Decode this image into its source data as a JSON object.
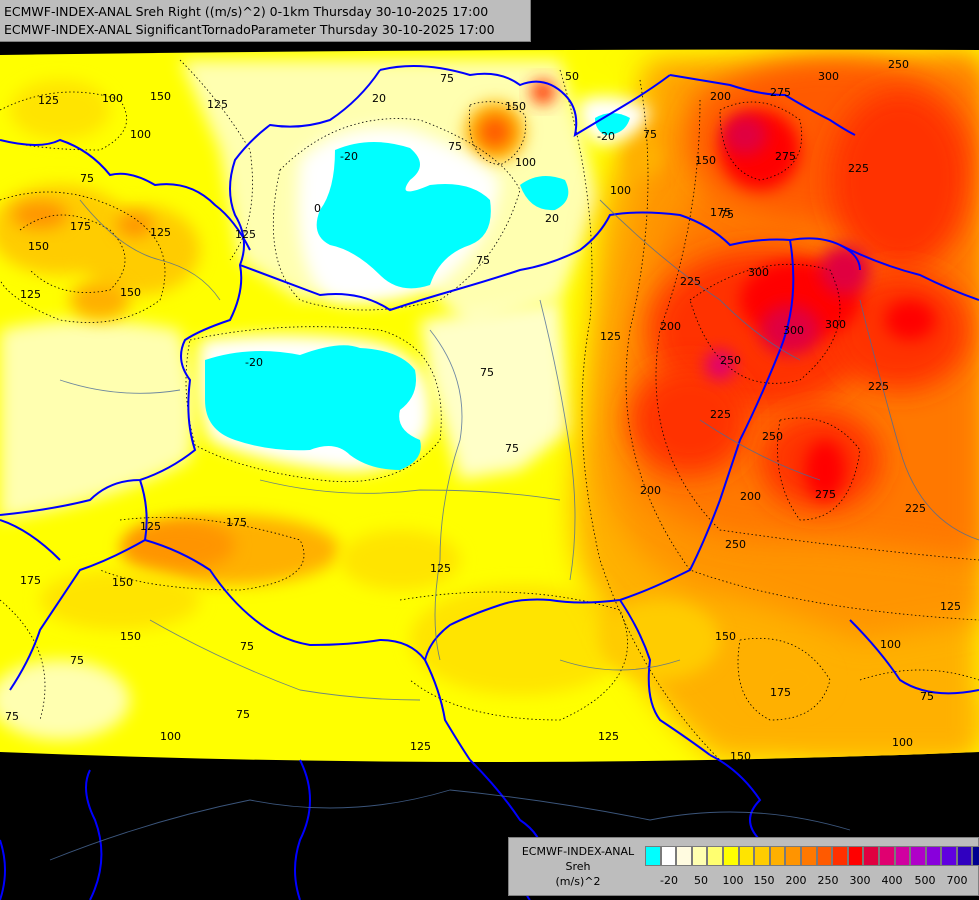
{
  "header": {
    "line1": "ECMWF-INDEX-ANAL Sreh Right ((m/s)^2) 0-1km Thursday 30-10-2025 17:00",
    "line2": "ECMWF-INDEX-ANAL SignificantTornadoParameter Thursday 30-10-2025 17:00"
  },
  "legend": {
    "model": "ECMWF-INDEX-ANAL",
    "field": "Sreh",
    "unit": "(m/s)^2",
    "colors": [
      "#00ffff",
      "#ffffff",
      "#fffbe0",
      "#ffffb0",
      "#ffff70",
      "#ffff00",
      "#ffe400",
      "#ffcc00",
      "#ffb000",
      "#ff9400",
      "#ff7800",
      "#ff5a00",
      "#ff3000",
      "#ff0000",
      "#e00040",
      "#e00070",
      "#d000a0",
      "#b000c8",
      "#8800dc",
      "#6000e0",
      "#3000c0",
      "#000090"
    ],
    "ticks": [
      "-20",
      "50",
      "100",
      "150",
      "200",
      "250",
      "300",
      "400",
      "500",
      "700"
    ]
  },
  "contour_labels": [
    "125",
    "100",
    "150",
    "125",
    "75",
    "150",
    "175",
    "125",
    "150",
    "125",
    "-20",
    "150",
    "100",
    "75",
    "-20",
    "20",
    "100",
    "75",
    "200",
    "275",
    "300",
    "250",
    "225",
    "150",
    "175",
    "200",
    "225",
    "275",
    "125",
    "200",
    "250",
    "300",
    "300",
    "225",
    "250",
    "275",
    "200",
    "250",
    "225",
    "125",
    "150",
    "175",
    "225",
    "75",
    "125",
    "175",
    "125",
    "75",
    "75",
    "125",
    "150",
    "100",
    "75",
    "175",
    "75",
    "100",
    "150",
    "50",
    "0",
    "20",
    "-20",
    "75",
    "75",
    "125",
    "100",
    "150",
    "75",
    "75",
    "100",
    "75",
    "125",
    "300"
  ]
}
